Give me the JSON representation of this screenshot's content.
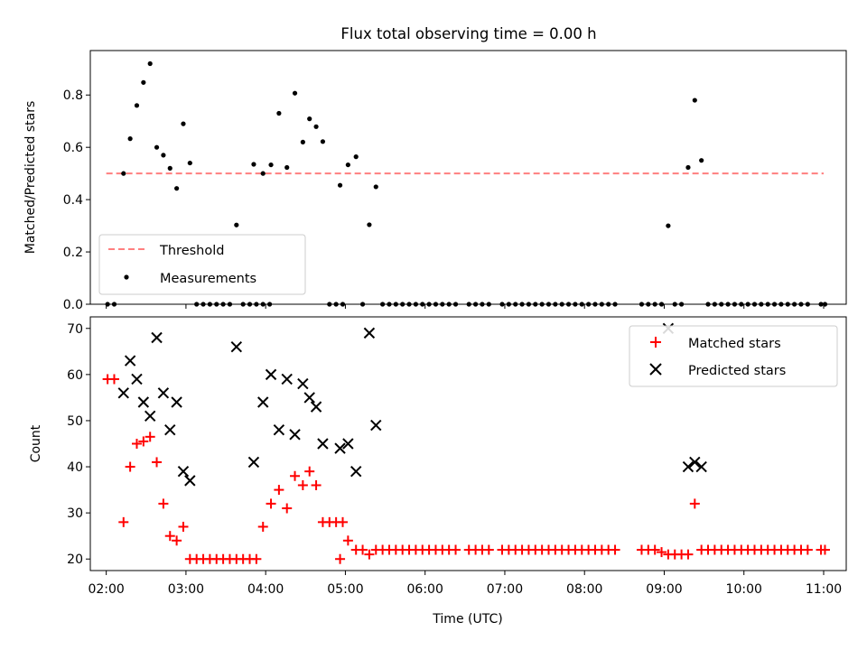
{
  "figure": {
    "title": "Flux total observing time = 0.00 h"
  },
  "chart_data": [
    {
      "type": "scatter",
      "ylabel": "Matched/Predicted stars",
      "ylim": [
        0,
        0.97
      ],
      "yticks": [
        0.0,
        0.2,
        0.4,
        0.6,
        0.8
      ],
      "ytick_labels": [
        "0.0",
        "0.2",
        "0.4",
        "0.6",
        "0.8"
      ],
      "xlim": [
        "01:48",
        "11:17"
      ],
      "threshold": {
        "name": "Threshold",
        "value": 0.5,
        "x_start": "02:00",
        "x_end": "11:00",
        "color": "#ff7f7f"
      },
      "series": [
        {
          "name": "Measurements",
          "color": "#000000",
          "points": [
            [
              "02:01",
              0
            ],
            [
              "02:06",
              0
            ],
            [
              "02:13",
              0.5
            ],
            [
              "02:18",
              0.633
            ],
            [
              "02:23",
              0.76
            ],
            [
              "02:28",
              0.848
            ],
            [
              "02:33",
              0.92
            ],
            [
              "02:38",
              0.6
            ],
            [
              "02:43",
              0.57
            ],
            [
              "02:48",
              0.52
            ],
            [
              "02:53",
              0.443
            ],
            [
              "02:58",
              0.69
            ],
            [
              "03:03",
              0.54
            ],
            [
              "03:08",
              0
            ],
            [
              "03:13",
              0
            ],
            [
              "03:18",
              0
            ],
            [
              "03:23",
              0
            ],
            [
              "03:28",
              0
            ],
            [
              "03:33",
              0
            ],
            [
              "03:38",
              0.303
            ],
            [
              "03:43",
              0
            ],
            [
              "03:48",
              0
            ],
            [
              "03:53",
              0
            ],
            [
              "03:58",
              0
            ],
            [
              "04:03",
              0
            ],
            [
              "03:51",
              0.535
            ],
            [
              "03:58",
              0.5
            ],
            [
              "04:04",
              0.533
            ],
            [
              "04:10",
              0.73
            ],
            [
              "04:16",
              0.523
            ],
            [
              "04:22",
              0.807
            ],
            [
              "04:28",
              0.62
            ],
            [
              "04:33",
              0.709
            ],
            [
              "04:38",
              0.679
            ],
            [
              "04:43",
              0.622
            ],
            [
              "04:48",
              0
            ],
            [
              "04:53",
              0
            ],
            [
              "04:58",
              0
            ],
            [
              "04:56",
              0.455
            ],
            [
              "05:02",
              0.533
            ],
            [
              "05:08",
              0.564
            ],
            [
              "05:13",
              0
            ],
            [
              "05:18",
              0.304
            ],
            [
              "05:23",
              0.449
            ],
            [
              "05:28",
              0
            ],
            [
              "05:33",
              0
            ],
            [
              "05:38",
              0
            ],
            [
              "05:43",
              0
            ],
            [
              "05:48",
              0
            ],
            [
              "05:53",
              0
            ],
            [
              "05:58",
              0
            ],
            [
              "06:03",
              0
            ],
            [
              "06:08",
              0
            ],
            [
              "06:13",
              0
            ],
            [
              "06:18",
              0
            ],
            [
              "06:23",
              0
            ],
            [
              "06:33",
              0
            ],
            [
              "06:38",
              0
            ],
            [
              "06:43",
              0
            ],
            [
              "06:48",
              0
            ],
            [
              "06:58",
              0
            ],
            [
              "07:03",
              0
            ],
            [
              "07:08",
              0
            ],
            [
              "07:13",
              0
            ],
            [
              "07:18",
              0
            ],
            [
              "07:23",
              0
            ],
            [
              "07:28",
              0
            ],
            [
              "07:33",
              0
            ],
            [
              "07:38",
              0
            ],
            [
              "07:43",
              0
            ],
            [
              "07:48",
              0
            ],
            [
              "07:53",
              0
            ],
            [
              "07:58",
              0
            ],
            [
              "08:03",
              0
            ],
            [
              "08:08",
              0
            ],
            [
              "08:13",
              0
            ],
            [
              "08:18",
              0
            ],
            [
              "08:23",
              0
            ],
            [
              "08:43",
              0
            ],
            [
              "08:48",
              0
            ],
            [
              "08:53",
              0
            ],
            [
              "08:58",
              0
            ],
            [
              "09:03",
              0.3
            ],
            [
              "09:08",
              0
            ],
            [
              "09:13",
              0
            ],
            [
              "09:18",
              0.523
            ],
            [
              "09:23",
              0.78
            ],
            [
              "09:28",
              0.55
            ],
            [
              "09:33",
              0
            ],
            [
              "09:38",
              0
            ],
            [
              "09:43",
              0
            ],
            [
              "09:48",
              0
            ],
            [
              "09:53",
              0
            ],
            [
              "09:58",
              0
            ],
            [
              "10:03",
              0
            ],
            [
              "10:08",
              0
            ],
            [
              "10:13",
              0
            ],
            [
              "10:18",
              0
            ],
            [
              "10:23",
              0
            ],
            [
              "10:28",
              0
            ],
            [
              "10:33",
              0
            ],
            [
              "10:38",
              0
            ],
            [
              "10:43",
              0
            ],
            [
              "10:48",
              0
            ],
            [
              "10:58",
              0
            ],
            [
              "11:01",
              0
            ]
          ]
        }
      ],
      "legend": {
        "placement": "lower-left",
        "entries": [
          "Threshold",
          "Measurements"
        ]
      }
    },
    {
      "type": "scatter",
      "xlabel": "Time (UTC)",
      "ylabel": "Count",
      "ylim": [
        17.5,
        72.5
      ],
      "yticks": [
        20,
        30,
        40,
        50,
        60,
        70
      ],
      "ytick_labels": [
        "20",
        "30",
        "40",
        "50",
        "60",
        "70"
      ],
      "xlim": [
        "01:48",
        "11:17"
      ],
      "xticks": [
        "02:00",
        "03:00",
        "04:00",
        "05:00",
        "06:00",
        "07:00",
        "08:00",
        "09:00",
        "10:00",
        "11:00"
      ],
      "xtick_labels": [
        "02:00",
        "03:00",
        "04:00",
        "05:00",
        "06:00",
        "07:00",
        "08:00",
        "09:00",
        "10:00",
        "11:00"
      ],
      "series": [
        {
          "name": "Matched stars",
          "color": "#ff0000",
          "marker": "plus",
          "points": [
            [
              "02:01",
              59
            ],
            [
              "02:06",
              59
            ],
            [
              "02:13",
              28
            ],
            [
              "02:18",
              40
            ],
            [
              "02:23",
              45
            ],
            [
              "02:28",
              45.5
            ],
            [
              "02:33",
              46.5
            ],
            [
              "02:38",
              41
            ],
            [
              "02:43",
              32
            ],
            [
              "02:48",
              25
            ],
            [
              "02:53",
              24
            ],
            [
              "02:58",
              27
            ],
            [
              "03:03",
              20
            ],
            [
              "03:08",
              20
            ],
            [
              "03:13",
              20
            ],
            [
              "03:18",
              20
            ],
            [
              "03:23",
              20
            ],
            [
              "03:28",
              20
            ],
            [
              "03:33",
              20
            ],
            [
              "03:38",
              20
            ],
            [
              "03:43",
              20
            ],
            [
              "03:48",
              20
            ],
            [
              "03:53",
              20
            ],
            [
              "03:58",
              27
            ],
            [
              "04:04",
              32
            ],
            [
              "04:10",
              35
            ],
            [
              "04:16",
              31
            ],
            [
              "04:22",
              38
            ],
            [
              "04:28",
              36
            ],
            [
              "04:33",
              39
            ],
            [
              "04:38",
              36
            ],
            [
              "04:43",
              28
            ],
            [
              "04:48",
              28
            ],
            [
              "04:53",
              28
            ],
            [
              "04:58",
              28
            ],
            [
              "04:56",
              20
            ],
            [
              "05:02",
              24
            ],
            [
              "05:08",
              22
            ],
            [
              "05:13",
              22
            ],
            [
              "05:18",
              21
            ],
            [
              "05:23",
              22
            ],
            [
              "05:28",
              22
            ],
            [
              "05:33",
              22
            ],
            [
              "05:38",
              22
            ],
            [
              "05:43",
              22
            ],
            [
              "05:48",
              22
            ],
            [
              "05:53",
              22
            ],
            [
              "05:58",
              22
            ],
            [
              "06:03",
              22
            ],
            [
              "06:08",
              22
            ],
            [
              "06:13",
              22
            ],
            [
              "06:18",
              22
            ],
            [
              "06:23",
              22
            ],
            [
              "06:33",
              22
            ],
            [
              "06:38",
              22
            ],
            [
              "06:43",
              22
            ],
            [
              "06:48",
              22
            ],
            [
              "06:58",
              22
            ],
            [
              "07:03",
              22
            ],
            [
              "07:08",
              22
            ],
            [
              "07:13",
              22
            ],
            [
              "07:18",
              22
            ],
            [
              "07:23",
              22
            ],
            [
              "07:28",
              22
            ],
            [
              "07:33",
              22
            ],
            [
              "07:38",
              22
            ],
            [
              "07:43",
              22
            ],
            [
              "07:48",
              22
            ],
            [
              "07:53",
              22
            ],
            [
              "07:58",
              22
            ],
            [
              "08:03",
              22
            ],
            [
              "08:08",
              22
            ],
            [
              "08:13",
              22
            ],
            [
              "08:18",
              22
            ],
            [
              "08:23",
              22
            ],
            [
              "08:43",
              22
            ],
            [
              "08:48",
              22
            ],
            [
              "08:53",
              22
            ],
            [
              "08:58",
              21.5
            ],
            [
              "09:03",
              21
            ],
            [
              "09:08",
              21
            ],
            [
              "09:13",
              21
            ],
            [
              "09:18",
              21
            ],
            [
              "09:23",
              32
            ],
            [
              "09:28",
              22
            ],
            [
              "09:33",
              22
            ],
            [
              "09:38",
              22
            ],
            [
              "09:43",
              22
            ],
            [
              "09:48",
              22
            ],
            [
              "09:53",
              22
            ],
            [
              "09:58",
              22
            ],
            [
              "10:03",
              22
            ],
            [
              "10:08",
              22
            ],
            [
              "10:13",
              22
            ],
            [
              "10:18",
              22
            ],
            [
              "10:23",
              22
            ],
            [
              "10:28",
              22
            ],
            [
              "10:33",
              22
            ],
            [
              "10:38",
              22
            ],
            [
              "10:43",
              22
            ],
            [
              "10:48",
              22
            ],
            [
              "10:58",
              22
            ],
            [
              "11:01",
              22
            ]
          ]
        },
        {
          "name": "Predicted stars",
          "color": "#000000",
          "marker": "x",
          "points": [
            [
              "02:13",
              56
            ],
            [
              "02:18",
              63
            ],
            [
              "02:23",
              59
            ],
            [
              "02:28",
              54
            ],
            [
              "02:33",
              51
            ],
            [
              "02:38",
              68
            ],
            [
              "02:43",
              56
            ],
            [
              "02:48",
              48
            ],
            [
              "02:53",
              54
            ],
            [
              "02:58",
              39
            ],
            [
              "03:03",
              37
            ],
            [
              "03:38",
              66
            ],
            [
              "03:51",
              41
            ],
            [
              "03:58",
              54
            ],
            [
              "04:04",
              60
            ],
            [
              "04:10",
              48
            ],
            [
              "04:16",
              59
            ],
            [
              "04:22",
              47
            ],
            [
              "04:28",
              58
            ],
            [
              "04:33",
              55
            ],
            [
              "04:38",
              53
            ],
            [
              "04:43",
              45
            ],
            [
              "04:56",
              44
            ],
            [
              "05:02",
              45
            ],
            [
              "05:08",
              39
            ],
            [
              "05:18",
              69
            ],
            [
              "05:23",
              49
            ],
            [
              "09:03",
              70
            ],
            [
              "09:18",
              40
            ],
            [
              "09:23",
              41
            ],
            [
              "09:28",
              40
            ]
          ]
        }
      ],
      "legend": {
        "placement": "top-right",
        "entries": [
          "Matched stars",
          "Predicted stars"
        ]
      }
    }
  ]
}
